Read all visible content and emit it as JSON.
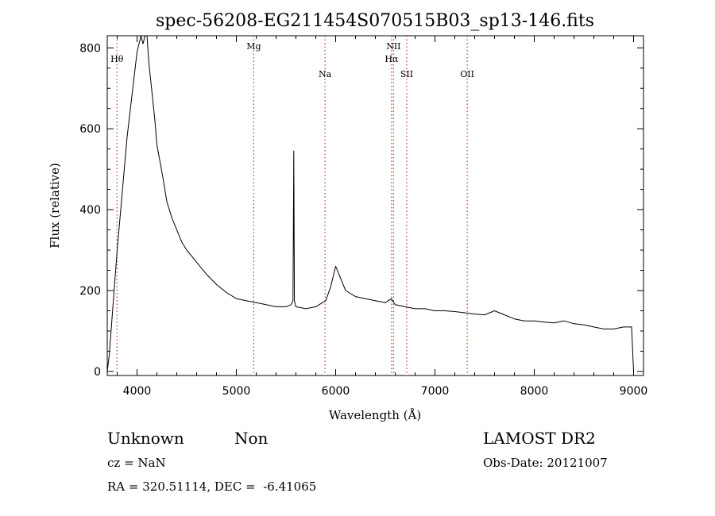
{
  "chart_data": {
    "type": "line",
    "title": "spec-56208-EG211454S070515B03_sp13-146.fits",
    "xlabel": "Wavelength (Å)",
    "ylabel": "Flux (relative)",
    "xlim": [
      3700,
      9100
    ],
    "ylim": [
      -10,
      830
    ],
    "x_ticks": [
      4000,
      5000,
      6000,
      7000,
      8000,
      9000
    ],
    "y_ticks": [
      0,
      200,
      400,
      600,
      800
    ],
    "grid": false,
    "spectrum_color": "#000000",
    "line_marker_color": "#cc3333",
    "series": [
      {
        "x": [
          3700,
          3720,
          3800,
          3900,
          4000,
          4040,
          4060,
          4080,
          4100,
          4120,
          4150,
          4180,
          4200,
          4230,
          4260,
          4300,
          4350,
          4400,
          4450,
          4500,
          4600,
          4700,
          4800,
          4900,
          5000,
          5100,
          5200,
          5300,
          5400,
          5500,
          5550,
          5570,
          5578,
          5585,
          5600,
          5700,
          5800,
          5900,
          5950,
          6000,
          6050,
          6100,
          6200,
          6300,
          6400,
          6500,
          6560,
          6600,
          6700,
          6800,
          6900,
          7000,
          7100,
          7200,
          7300,
          7400,
          7500,
          7600,
          7700,
          7800,
          7900,
          8000,
          8100,
          8200,
          8300,
          8400,
          8500,
          8600,
          8700,
          8800,
          8900,
          8980,
          9000
        ],
        "y": [
          0,
          40,
          300,
          580,
          790,
          830,
          810,
          850,
          830,
          760,
          690,
          620,
          560,
          520,
          480,
          420,
          380,
          350,
          320,
          300,
          270,
          240,
          215,
          195,
          180,
          175,
          170,
          165,
          160,
          160,
          165,
          175,
          545,
          175,
          160,
          155,
          160,
          175,
          210,
          260,
          230,
          200,
          185,
          180,
          175,
          170,
          180,
          165,
          160,
          155,
          155,
          150,
          150,
          148,
          145,
          142,
          140,
          150,
          140,
          130,
          125,
          125,
          122,
          120,
          125,
          118,
          115,
          110,
          105,
          105,
          110,
          110,
          0
        ]
      }
    ],
    "spectral_lines": [
      {
        "label": "Hθ",
        "wavelength": 3798,
        "row": 1
      },
      {
        "label": "Mg",
        "wavelength": 5175,
        "row": 0
      },
      {
        "label": "Na",
        "wavelength": 5893,
        "row": 2
      },
      {
        "label": "NII",
        "wavelength": 6583,
        "row": 0
      },
      {
        "label": "Hα",
        "wavelength": 6563,
        "row": 1
      },
      {
        "label": "SII",
        "wavelength": 6716,
        "row": 2
      },
      {
        "label": "OII",
        "wavelength": 7325,
        "row": 2
      }
    ]
  },
  "info": {
    "class": "Unknown",
    "subclass": "Non",
    "survey": "LAMOST DR2",
    "cz": "cz = NaN",
    "obs_date": "Obs-Date: 20121007",
    "coords": "RA = 320.51114, DEC =  -6.41065"
  }
}
